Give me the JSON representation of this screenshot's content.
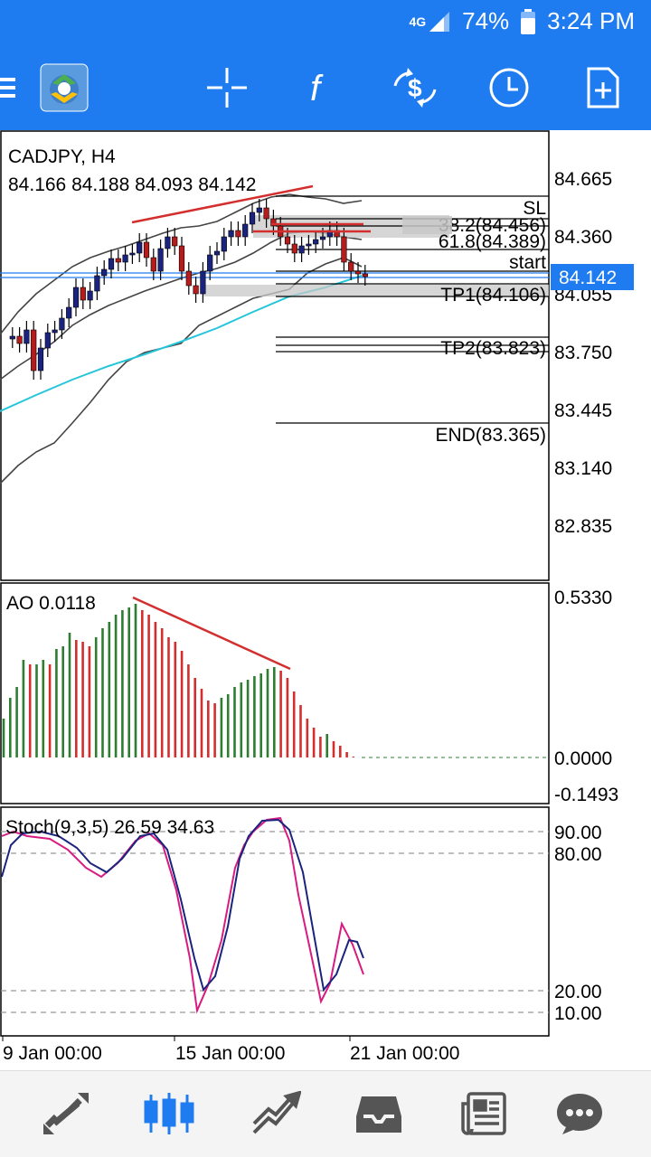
{
  "status_bar": {
    "network": "4G",
    "battery": "74%",
    "time": "3:24 PM"
  },
  "toolbar": {
    "icons": [
      "menu-icon",
      "app-logo-icon",
      "crosshair-icon",
      "function-icon",
      "symbol-swap-icon",
      "timeframe-clock-icon",
      "new-order-icon"
    ]
  },
  "main_chart": {
    "symbol_tf": "CADJPY, H4",
    "ohlc": "84.166 84.188 84.093 84.142",
    "price_labels": [
      "84.665",
      "84.360",
      "84.055",
      "83.750",
      "83.445",
      "83.140",
      "82.835"
    ],
    "current_price": "84.142",
    "levels": {
      "sl": "SL",
      "fib_hidden": "38.2(84.456)",
      "fib618": "61.8(84.389)",
      "start": "start",
      "tp1": "TP1(84.106)",
      "tp2": "TP2(83.823)",
      "end": "END(83.365)"
    }
  },
  "ao": {
    "label": "AO 0.0118",
    "scale": [
      "0.5330",
      "0.0000",
      "-0.1493"
    ]
  },
  "stoch": {
    "label": "Stoch(9,3,5) 26.59 34.63",
    "scale": [
      "90.00",
      "80.00",
      "20.00",
      "10.00"
    ]
  },
  "time_axis": [
    "9 Jan 00:00",
    "15 Jan 00:00",
    "21 Jan 00:00"
  ],
  "bottom_nav": {
    "icons": [
      "quotes-icon",
      "chart-icon",
      "trade-icon",
      "history-icon",
      "news-icon",
      "messages-icon"
    ],
    "active": "chart-icon"
  },
  "colors": {
    "accent": "#1f7cf0",
    "bull": "#1a237e",
    "bear": "#b71c1c",
    "ao_up": "#2e7d32",
    "ao_down": "#d32f2f",
    "stoch_main": "#1a237e",
    "stoch_signal": "#d81b80",
    "ma": "#26c6da",
    "divergence": "#d32f2f"
  }
}
